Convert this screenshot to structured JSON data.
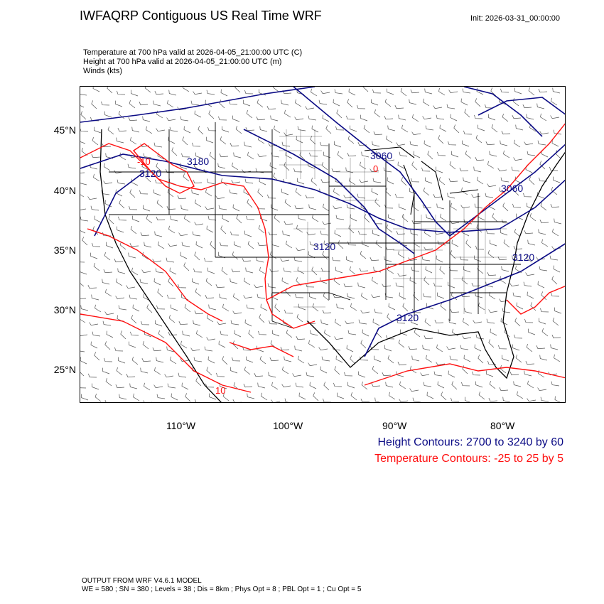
{
  "title": "IWFAQRP Contiguous US Real Time WRF",
  "init": "Init: 2026-03-31_00:00:00",
  "fields": [
    "Temperature at 700 hPa valid at 2026-04-05_21:00:00 UTC   (C)",
    "Height at 700 hPa valid at 2026-04-05_21:00:00 UTC   (m)",
    "Winds   (kts)"
  ],
  "lat_labels": [
    "45°N",
    "40°N",
    "35°N",
    "30°N",
    "25°N"
  ],
  "lon_labels": [
    "110°W",
    "100°W",
    "90°W",
    "80°W"
  ],
  "contour_labels": {
    "height": [
      "3180",
      "3120",
      "3060",
      "3120",
      "3120",
      "3060",
      "3120"
    ],
    "temperature": [
      "-10",
      "0",
      "10"
    ]
  },
  "legend": {
    "height": "Height Contours: 2700 to 3240 by 60",
    "temperature": "Temperature Contours: -25 to 25 by 5"
  },
  "colors": {
    "height": "#0b0b85",
    "temperature": "#ff1010",
    "border": "#000000"
  },
  "footer": [
    "OUTPUT FROM WRF V4.6.1 MODEL",
    "WE = 580 ; SN = 380 ; Levels = 38 ; Dis = 8km ; Phys Opt = 8 ; PBL Opt = 1 ; Cu Opt = 5"
  ]
}
